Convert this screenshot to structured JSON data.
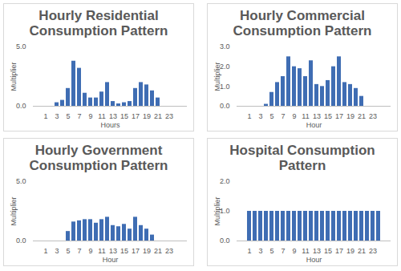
{
  "chart_data": [
    {
      "type": "bar",
      "title": "Hourly Residential Consumption Pattern",
      "x_label": "Hours",
      "y_label": "Multiplier",
      "categories": [
        1,
        null,
        3,
        null,
        5,
        null,
        7,
        null,
        9,
        null,
        11,
        null,
        13,
        null,
        15,
        null,
        17,
        null,
        19,
        null,
        21,
        null,
        23,
        null
      ],
      "values": [
        0,
        0,
        0.3,
        0.5,
        1.5,
        3.8,
        3.2,
        1.1,
        0.7,
        0.7,
        1.2,
        2.0,
        0.4,
        0.2,
        0.3,
        0.4,
        1.5,
        2.0,
        1.8,
        1.3,
        0.7,
        0,
        0,
        0
      ],
      "color": "#3f6db3",
      "ylim": [
        0,
        5
      ],
      "yticks": [
        0,
        5
      ]
    },
    {
      "type": "bar",
      "title": "Hourly Commercial Consumption Pattern",
      "x_label": "Hour",
      "y_label": "Multiplier",
      "categories": [
        1,
        null,
        3,
        null,
        5,
        null,
        7,
        null,
        9,
        null,
        11,
        null,
        13,
        null,
        15,
        null,
        17,
        null,
        19,
        null,
        21,
        null,
        23,
        null
      ],
      "values": [
        0,
        0,
        0,
        0.1,
        0.7,
        1.2,
        1.5,
        2.5,
        2.0,
        1.9,
        1.5,
        2.3,
        1.1,
        1.0,
        1.3,
        2.0,
        2.5,
        1.2,
        1.1,
        0.9,
        0.5,
        0,
        0,
        0
      ],
      "color": "#3f6db3",
      "ylim": [
        0,
        3
      ],
      "yticks": [
        0,
        1,
        2,
        3
      ]
    },
    {
      "type": "bar",
      "title": "Hourly Government Consumption Pattern",
      "x_label": "Hour",
      "y_label": "Multiplier",
      "categories": [
        1,
        null,
        3,
        null,
        5,
        null,
        7,
        null,
        9,
        null,
        11,
        null,
        13,
        null,
        15,
        null,
        17,
        null,
        19,
        null,
        21,
        null,
        23,
        null
      ],
      "values": [
        0,
        0,
        0,
        0,
        0.8,
        1.6,
        1.7,
        1.8,
        1.8,
        1.5,
        1.8,
        2.0,
        1.3,
        1.2,
        1.4,
        1.0,
        2.0,
        1.3,
        1.0,
        0.5,
        0,
        0,
        0,
        0
      ],
      "color": "#3f6db3",
      "ylim": [
        0,
        5
      ],
      "yticks": [
        0,
        5
      ]
    },
    {
      "type": "bar",
      "title": "Hospital Consumption Pattern",
      "x_label": "Hour",
      "y_label": "Multiplier",
      "categories": [
        1,
        null,
        3,
        null,
        5,
        null,
        7,
        null,
        9,
        null,
        11,
        null,
        13,
        null,
        15,
        null,
        17,
        null,
        19,
        null,
        21,
        null,
        23,
        null
      ],
      "values": [
        1,
        1,
        1,
        1,
        1,
        1,
        1,
        1,
        1,
        1,
        1,
        1,
        1,
        1,
        1,
        1,
        1,
        1,
        1,
        1,
        1,
        1,
        1,
        1
      ],
      "color": "#3f6db3",
      "ylim": [
        0,
        2
      ],
      "yticks": [
        0,
        1,
        2
      ]
    }
  ]
}
